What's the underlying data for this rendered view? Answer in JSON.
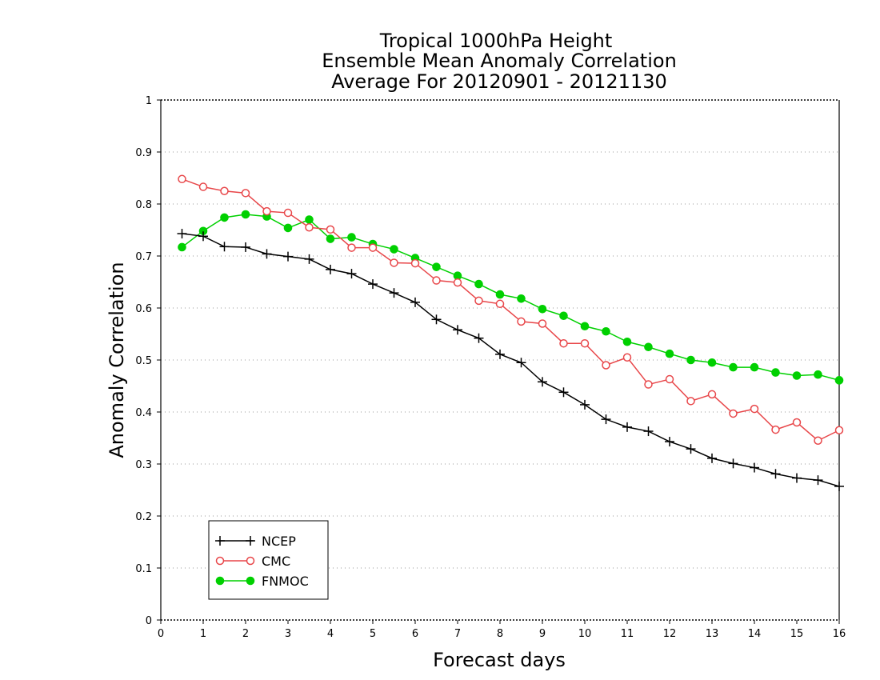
{
  "chart_data": {
    "type": "line",
    "title_lines": [
      "Tropical 1000hPa Height",
      "Ensemble Mean Anomaly Correlation",
      "Average For 20120901 - 20121130"
    ],
    "xlabel": "Forecast days",
    "ylabel": "Anomaly Correlation",
    "xlim": [
      0,
      16
    ],
    "ylim": [
      0,
      1
    ],
    "xticks": [
      0,
      1,
      2,
      3,
      4,
      5,
      6,
      7,
      8,
      9,
      10,
      11,
      12,
      13,
      14,
      15,
      16
    ],
    "yticks": [
      0,
      0.1,
      0.2,
      0.3,
      0.4,
      0.5,
      0.6,
      0.7,
      0.8,
      0.9,
      1
    ],
    "ytick_labels": [
      "0",
      "0.1",
      "0.2",
      "0.3",
      "0.4",
      "0.5",
      "0.6",
      "0.7",
      "0.8",
      "0.9",
      "1"
    ],
    "grid": "horizontal dotted",
    "legend_position": "bottom-left",
    "x": [
      0.5,
      1,
      1.5,
      2,
      2.5,
      3,
      3.5,
      4,
      4.5,
      5,
      5.5,
      6,
      6.5,
      7,
      7.5,
      8,
      8.5,
      9,
      9.5,
      10,
      10.5,
      11,
      11.5,
      12,
      12.5,
      13,
      13.5,
      14,
      14.5,
      15,
      15.5,
      16
    ],
    "series": [
      {
        "name": "NCEP",
        "color": "#000000",
        "marker": "plus",
        "values": [
          0.743,
          0.738,
          0.718,
          0.717,
          0.704,
          0.699,
          0.694,
          0.674,
          0.666,
          0.646,
          0.629,
          0.611,
          0.578,
          0.558,
          0.542,
          0.511,
          0.495,
          0.458,
          0.438,
          0.414,
          0.386,
          0.371,
          0.363,
          0.343,
          0.329,
          0.311,
          0.301,
          0.293,
          0.281,
          0.273,
          0.269,
          0.257
        ]
      },
      {
        "name": "CMC",
        "color": "#e8474a",
        "marker": "open-circle",
        "values": [
          0.848,
          0.833,
          0.825,
          0.821,
          0.786,
          0.783,
          0.755,
          0.751,
          0.716,
          0.716,
          0.687,
          0.686,
          0.653,
          0.649,
          0.614,
          0.608,
          0.574,
          0.57,
          0.532,
          0.532,
          0.49,
          0.505,
          0.453,
          0.463,
          0.421,
          0.434,
          0.397,
          0.406,
          0.366,
          0.38,
          0.345,
          0.365
        ]
      },
      {
        "name": "FNMOC",
        "color": "#00d000",
        "marker": "filled-circle",
        "values": [
          0.717,
          0.748,
          0.774,
          0.78,
          0.776,
          0.754,
          0.77,
          0.733,
          0.736,
          0.723,
          0.713,
          0.696,
          0.679,
          0.662,
          0.646,
          0.626,
          0.618,
          0.598,
          0.585,
          0.565,
          0.555,
          0.535,
          0.525,
          0.512,
          0.5,
          0.495,
          0.486,
          0.486,
          0.476,
          0.47,
          0.472,
          0.461
        ]
      }
    ]
  }
}
